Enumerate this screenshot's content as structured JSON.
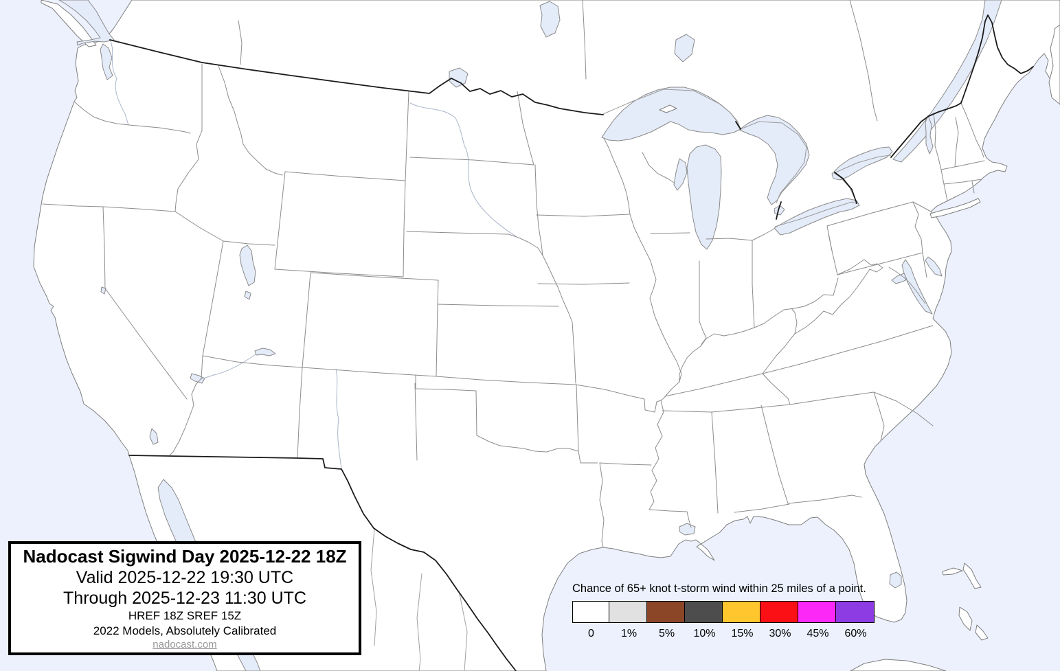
{
  "title_box": {
    "line1": "Nadocast Sigwind Day 2025-12-22 18Z",
    "line2": "Valid 2025-12-22 19:30 UTC",
    "line3": "Through 2025-12-23 11:30 UTC",
    "line4": "HREF 18Z SREF 15Z",
    "line5": "2022 Models, Absolutely Calibrated",
    "link": "nadocast.com"
  },
  "legend": {
    "title": "Chance of 65+ knot t-storm wind within 25 miles of a point.",
    "items": [
      {
        "label": "0",
        "color": "#FFFFFF"
      },
      {
        "label": "1%",
        "color": "#E1E1E1"
      },
      {
        "label": "5%",
        "color": "#8B4627"
      },
      {
        "label": "10%",
        "color": "#4D4D4D"
      },
      {
        "label": "15%",
        "color": "#FFC62E"
      },
      {
        "label": "30%",
        "color": "#FA1015"
      },
      {
        "label": "45%",
        "color": "#FC28F8"
      },
      {
        "label": "60%",
        "color": "#8D3BE3"
      }
    ]
  },
  "map": {
    "ocean_color": "#ECF1FD",
    "land_color": "#FFFFFF",
    "lake_color": "#E4EBF9",
    "state_border_color": "#8C8C8C",
    "country_border_color": "#1A1A1A"
  }
}
